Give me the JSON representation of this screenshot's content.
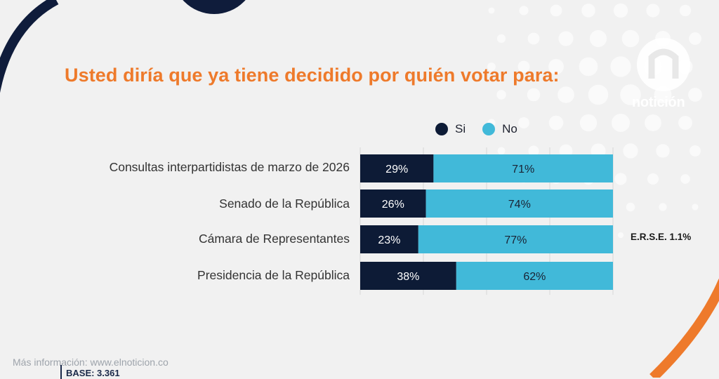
{
  "brand": {
    "name": "notición"
  },
  "chart_data": {
    "type": "bar",
    "orientation": "horizontal",
    "stacked": true,
    "title": "Usted diría que ya tiene decidido por quién votar para:",
    "categories": [
      "Consultas interpartidistas de marzo de 2026",
      "Senado de la República",
      "Cámara de Representantes",
      "Presidencia de la República"
    ],
    "series": [
      {
        "name": "Si",
        "color": "#0d1b36",
        "values": [
          29,
          26,
          23,
          38
        ]
      },
      {
        "name": "No",
        "color": "#41b9d9",
        "values": [
          71,
          74,
          77,
          62
        ]
      }
    ],
    "value_suffix": "%",
    "xlim": [
      0,
      100
    ],
    "legend": "top",
    "grid": true,
    "annotation": "E.R.S.E. 1.1%"
  },
  "footer": {
    "info": "Más información: www.elnoticion.co",
    "base": "BASE: 3.361"
  }
}
